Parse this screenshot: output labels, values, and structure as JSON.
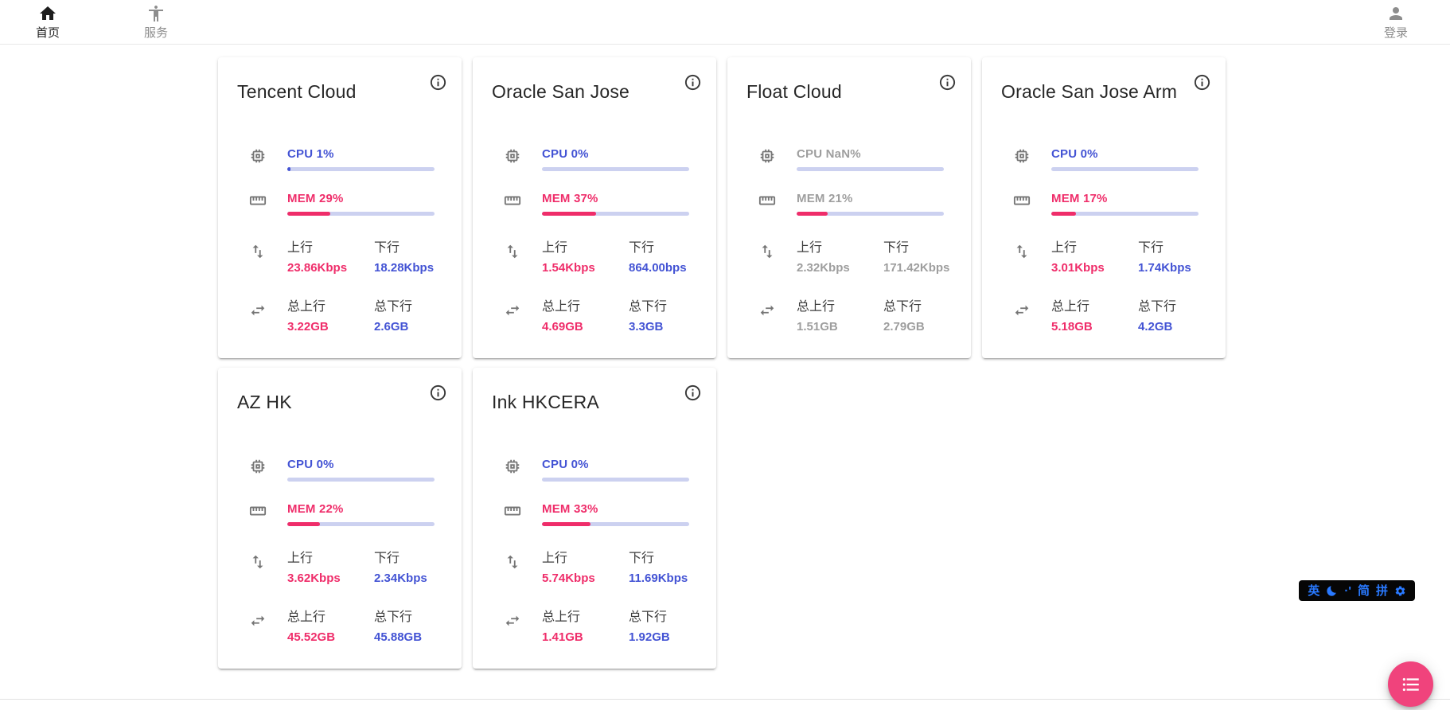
{
  "navbar": {
    "home": {
      "label": "首页"
    },
    "services": {
      "label": "服务"
    },
    "login": {
      "label": "登录"
    }
  },
  "labels": {
    "up": "上行",
    "down": "下行",
    "total_up": "总上行",
    "total_down": "总下行"
  },
  "colors": {
    "accent_blue": "#4353d4",
    "accent_pink": "#ef2d6a",
    "bar_track": "#ccd1f0",
    "offline_gray": "#9e9e9e",
    "fab_pink": "#f0437c",
    "ime_blue": "#2979ff"
  },
  "servers": [
    {
      "name": "Tencent Cloud",
      "offline": false,
      "cpu_text": "CPU 1%",
      "cpu_pct": 1,
      "mem_text": "MEM 29%",
      "mem_pct": 29,
      "up": "23.86Kbps",
      "down": "18.28Kbps",
      "total_up": "3.22GB",
      "total_down": "2.6GB"
    },
    {
      "name": "Oracle San Jose",
      "offline": false,
      "cpu_text": "CPU 0%",
      "cpu_pct": 0,
      "mem_text": "MEM 37%",
      "mem_pct": 37,
      "up": "1.54Kbps",
      "down": "864.00bps",
      "total_up": "4.69GB",
      "total_down": "3.3GB"
    },
    {
      "name": "Float Cloud",
      "offline": true,
      "cpu_text": "CPU NaN%",
      "cpu_pct": null,
      "mem_text": "MEM 21%",
      "mem_pct": 21,
      "up": "2.32Kbps",
      "down": "171.42Kbps",
      "total_up": "1.51GB",
      "total_down": "2.79GB"
    },
    {
      "name": "Oracle San Jose Arm",
      "offline": false,
      "cpu_text": "CPU 0%",
      "cpu_pct": 0,
      "mem_text": "MEM 17%",
      "mem_pct": 17,
      "up": "3.01Kbps",
      "down": "1.74Kbps",
      "total_up": "5.18GB",
      "total_down": "4.2GB"
    },
    {
      "name": "AZ HK",
      "offline": false,
      "cpu_text": "CPU 0%",
      "cpu_pct": 0,
      "mem_text": "MEM 22%",
      "mem_pct": 22,
      "up": "3.62Kbps",
      "down": "2.34Kbps",
      "total_up": "45.52GB",
      "total_down": "45.88GB"
    },
    {
      "name": "Ink HKCERA",
      "offline": false,
      "cpu_text": "CPU 0%",
      "cpu_pct": 0,
      "mem_text": "MEM 33%",
      "mem_pct": 33,
      "up": "5.74Kbps",
      "down": "11.69Kbps",
      "total_up": "1.41GB",
      "total_down": "1.92GB"
    }
  ],
  "ime_bar": {
    "items": [
      {
        "type": "text",
        "label": "英"
      },
      {
        "type": "icon",
        "name": "moon-icon"
      },
      {
        "type": "text",
        "label": "·'"
      },
      {
        "type": "text",
        "label": "简"
      },
      {
        "type": "text",
        "label": "拼"
      },
      {
        "type": "icon",
        "name": "gear-icon"
      }
    ]
  },
  "fab": {
    "icon": "list-icon"
  }
}
